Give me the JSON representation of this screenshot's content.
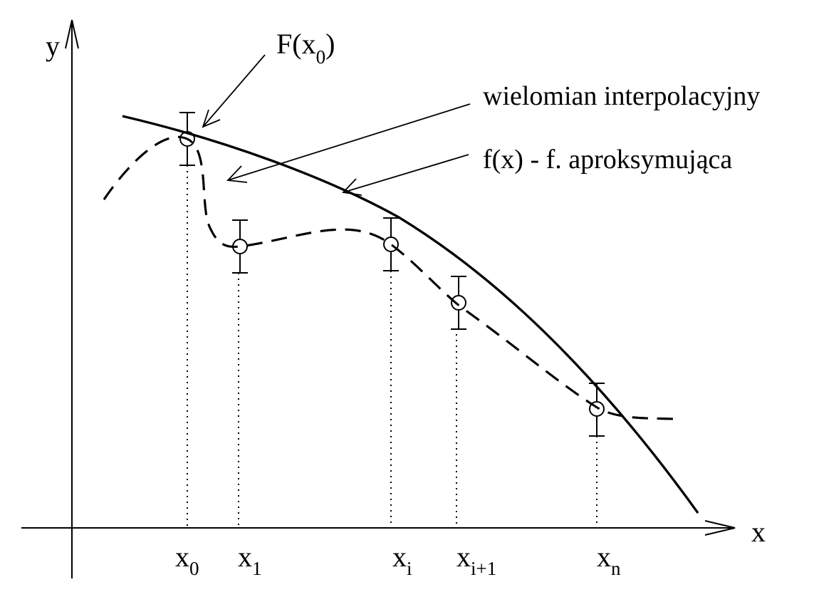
{
  "axes": {
    "x_label": "x",
    "y_label": "y"
  },
  "points": [
    {
      "base": "x",
      "sub": "0"
    },
    {
      "base": "x",
      "sub": "1"
    },
    {
      "base": "x",
      "sub": "i"
    },
    {
      "base": "x",
      "sub": "i+1"
    },
    {
      "base": "x",
      "sub": "n"
    }
  ],
  "annotations": {
    "F_base": "F(x",
    "F_sub": "0",
    "F_close": ")",
    "interp": "wielomian interpolacyjny",
    "approx": "f(x)  -  f. aproksymująca"
  }
}
